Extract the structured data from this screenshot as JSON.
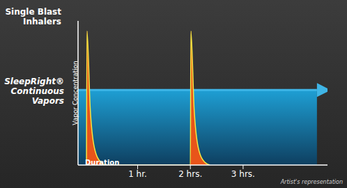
{
  "chart_data": {
    "type": "area",
    "x_label": "Duration",
    "y_label": "Vapor Concentration",
    "annotations": [
      "Artist's representation"
    ],
    "xlim": [
      -0.13,
      4.6
    ],
    "xticks": [
      {
        "value": 1,
        "label": "1 hr."
      },
      {
        "value": 2,
        "label": "2 hrs."
      },
      {
        "value": 3,
        "label": "3 hrs."
      }
    ],
    "ylim": [
      0,
      100
    ],
    "tick_labels": "x",
    "grid": false,
    "series": [
      {
        "name": "SleepRight® Continuous Vapors",
        "color": "#1e9fd4",
        "x": [
          -0.13,
          4.4
        ],
        "values": [
          52,
          52
        ]
      },
      {
        "name": "Single Blast Inhalers",
        "color": "#e8541a",
        "x": [
          0.03,
          0.04,
          0.1,
          0.18,
          0.3,
          0.4,
          2.0,
          2.01,
          2.07,
          2.15,
          2.27,
          2.37
        ],
        "values": [
          0,
          93,
          40,
          12,
          2,
          0,
          0,
          93,
          40,
          12,
          2,
          0
        ]
      }
    ]
  }
}
